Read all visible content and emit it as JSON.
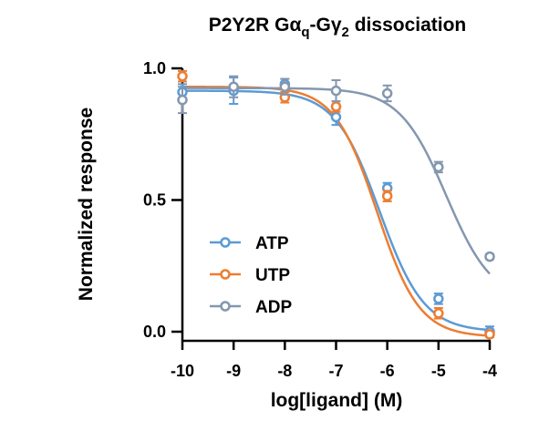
{
  "chart_data": {
    "type": "line",
    "title": "P2Y2R Gα",
    "title_sub_q": "q",
    "title_mid": "-Gγ",
    "title_sub_2": "2",
    "title_end": " dissociation",
    "xlabel": "log[ligand] (M)",
    "ylabel": "Normalized response",
    "xlim": [
      -10,
      -4
    ],
    "ylim": [
      0,
      1
    ],
    "xticks": [
      -10,
      -9,
      -8,
      -7,
      -6,
      -5,
      -4
    ],
    "xtick_labels": [
      "-10",
      "-9",
      "-8",
      "-7",
      "-6",
      "-5",
      "-4"
    ],
    "yticks": [
      0,
      0.5,
      1
    ],
    "ytick_labels": [
      "0.0",
      "0.5",
      "1.0"
    ],
    "legend_position": "lower-left",
    "series": [
      {
        "name": "ATP",
        "color": "#5b9bd5",
        "x": [
          -10,
          -9,
          -8,
          -7,
          -6,
          -5,
          -4
        ],
        "y": [
          0.91,
          0.915,
          0.94,
          0.815,
          0.545,
          0.125,
          0.0
        ],
        "err": [
          0.03,
          0.05,
          0.02,
          0.03,
          0.02,
          0.02,
          0.02
        ],
        "fit": {
          "top": 0.915,
          "bottom": 0.0,
          "logEC50": -6.15,
          "hill": 1.0
        }
      },
      {
        "name": "UTP",
        "color": "#ed7d31",
        "x": [
          -10,
          -8,
          -7,
          -6,
          -5,
          -4
        ],
        "y": [
          0.97,
          0.89,
          0.855,
          0.515,
          0.07,
          -0.01
        ],
        "err": [
          0.02,
          0.02,
          0.02,
          0.02,
          0.02,
          0.01
        ],
        "fit": {
          "top": 0.93,
          "bottom": -0.02,
          "logEC50": -6.2,
          "hill": 1.05
        }
      },
      {
        "name": "ADP",
        "color": "#8497b0",
        "x": [
          -10,
          -9,
          -8,
          -7,
          -6,
          -5,
          -4
        ],
        "y": [
          0.88,
          0.93,
          0.93,
          0.915,
          0.905,
          0.625,
          0.285
        ],
        "err": [
          0.05,
          0.04,
          0.03,
          0.04,
          0.03,
          0.02,
          0.01
        ],
        "fit": {
          "top": 0.925,
          "bottom": 0.11,
          "logEC50": -4.85,
          "hill": 0.95
        }
      }
    ]
  }
}
